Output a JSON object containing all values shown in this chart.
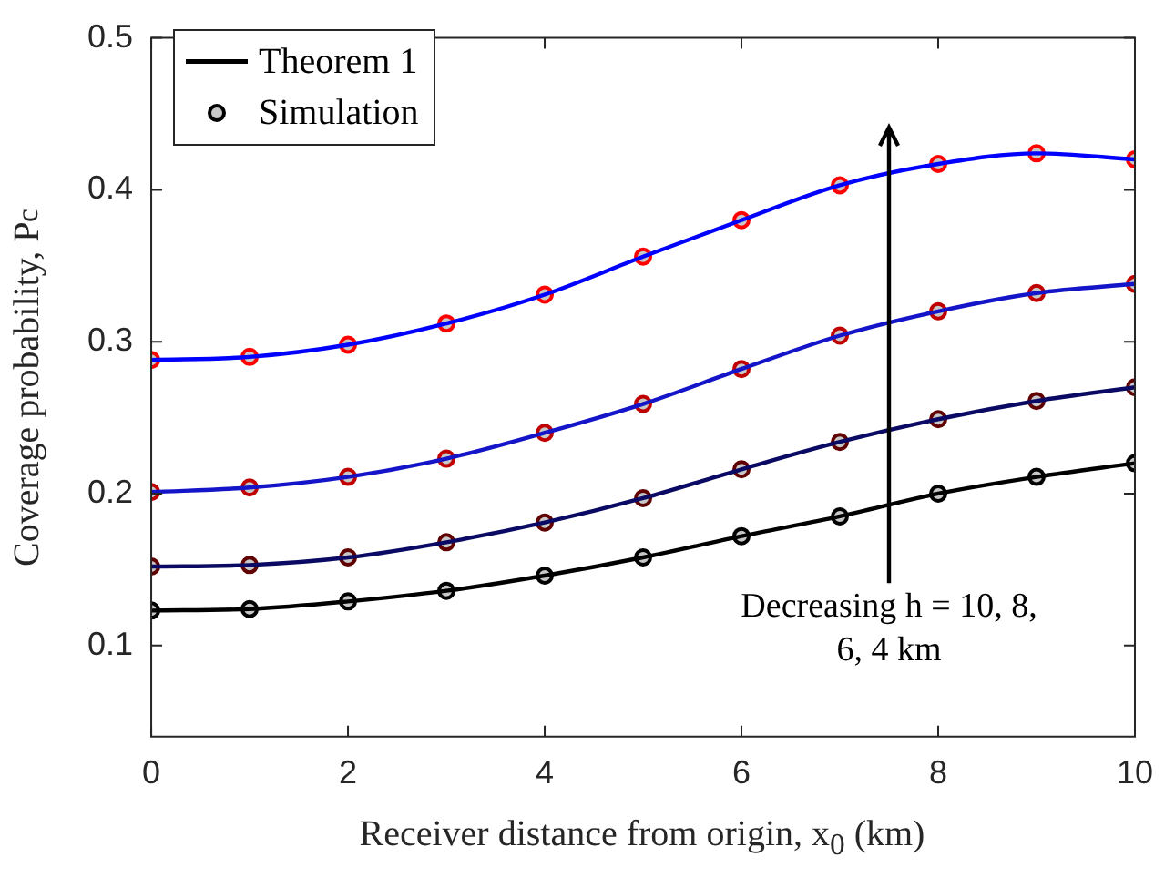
{
  "chart_data": {
    "type": "line",
    "xlabel": "Receiver distance from origin, x$_{0}$ (km)",
    "ylabel": "Coverage probability, P$_{c}$",
    "x": [
      0,
      1,
      2,
      3,
      4,
      5,
      6,
      7,
      8,
      9,
      10
    ],
    "xlim": [
      0,
      10
    ],
    "xticks": [
      0,
      2,
      4,
      6,
      8,
      10
    ],
    "ylim": [
      0.04,
      0.5
    ],
    "yticks": [
      0.1,
      0.2,
      0.3,
      0.4,
      0.5
    ],
    "legend": "top left",
    "series": [
      {
        "marker": "none",
        "color": "#0000ff",
        "values": [
          0.288,
          0.29,
          0.298,
          0.312,
          0.331,
          0.356,
          0.38,
          0.403,
          0.417,
          0.424,
          0.42
        ]
      },
      {
        "marker": "none",
        "color": "#1414c8",
        "values": [
          0.201,
          0.204,
          0.211,
          0.223,
          0.24,
          0.259,
          0.282,
          0.304,
          0.32,
          0.332,
          0.338
        ]
      },
      {
        "marker": "none",
        "color": "#0a0a64",
        "values": [
          0.152,
          0.153,
          0.158,
          0.168,
          0.181,
          0.197,
          0.216,
          0.234,
          0.249,
          0.261,
          0.27
        ]
      },
      {
        "marker": "none",
        "name": "Theorem 1",
        "color": "#000000",
        "values": [
          0.123,
          0.124,
          0.129,
          0.136,
          0.146,
          0.158,
          0.172,
          0.185,
          0.2,
          0.211,
          0.22
        ]
      },
      {
        "type": "scatter",
        "marker": "circle",
        "color": "#ff0000",
        "values": [
          0.288,
          0.29,
          0.298,
          0.312,
          0.331,
          0.356,
          0.38,
          0.403,
          0.417,
          0.424,
          0.42
        ]
      },
      {
        "type": "scatter",
        "marker": "circle",
        "color": "#c00000",
        "values": [
          0.201,
          0.204,
          0.211,
          0.223,
          0.24,
          0.259,
          0.282,
          0.304,
          0.32,
          0.332,
          0.338
        ]
      },
      {
        "type": "scatter",
        "marker": "circle",
        "color": "#600000",
        "values": [
          0.152,
          0.153,
          0.158,
          0.168,
          0.181,
          0.197,
          0.216,
          0.234,
          0.249,
          0.261,
          0.27
        ]
      },
      {
        "type": "scatter",
        "marker": "circle",
        "name": "Simulation",
        "color": "#000000",
        "values": [
          0.123,
          0.124,
          0.129,
          0.136,
          0.146,
          0.158,
          0.172,
          0.185,
          0.2,
          0.211,
          0.22
        ]
      }
    ],
    "annotations": [
      "Decreasing h = 10, 8, 6, 4 km"
    ]
  }
}
